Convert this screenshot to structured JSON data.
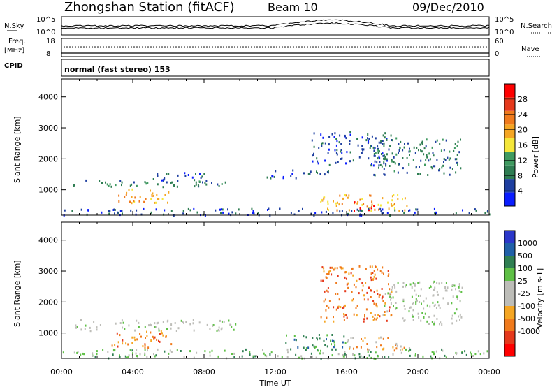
{
  "header": {
    "station": "Zhongshan Station (fitACF)",
    "beam": "Beam 10",
    "date": "09/Dec/2010"
  },
  "top_panels": {
    "nsky_label": "N.Sky",
    "nsearch_label": "N.Search",
    "noise_ticks": [
      "10^5",
      "10^0"
    ],
    "freq_label_top": "Freq.",
    "freq_label_unit": "[MHz]",
    "freq_ticks": [
      "18",
      "8"
    ],
    "nave_label": "Nave",
    "nave_ticks": [
      "60",
      "0"
    ],
    "cpid_label": "CPID",
    "cpid_value": "normal (fast stereo) 153"
  },
  "colors": {
    "power_scale": [
      "#0a1dff",
      "#1e3fa0",
      "#2e7d52",
      "#3f9a60",
      "#f5e73a",
      "#f5a623",
      "#f07a1c",
      "#e5391c",
      "#ff0000"
    ],
    "velocity_scale": [
      "#2b37c9",
      "#2060a8",
      "#2f7f52",
      "#5fc046",
      "#bdbdb8",
      "#bdbdb8",
      "#f5a623",
      "#f07a1c",
      "#e5391c",
      "#ff0000"
    ]
  },
  "chart_data": [
    {
      "type": "heatmap",
      "name": "power",
      "xlabel": "",
      "ylabel": "Slant Range [km]",
      "x_ticks": [
        "00:00",
        "04:00",
        "08:00",
        "12:00",
        "16:00",
        "20:00",
        "00:00"
      ],
      "y_ticks": [
        1000,
        2000,
        3000,
        4000
      ],
      "xlim": [
        0,
        24
      ],
      "ylim": [
        180,
        4580
      ],
      "colorbar": {
        "label": "Power [dB]",
        "ticks": [
          4,
          8,
          12,
          16,
          20,
          24,
          28
        ],
        "range": [
          0,
          30
        ]
      },
      "scatter_regions": [
        {
          "t0": 0.6,
          "t1": 9.2,
          "r0": 1100,
          "r1": 1350,
          "level": 2
        },
        {
          "t0": 2.8,
          "t1": 6.0,
          "r0": 600,
          "r1": 1050,
          "level": 5
        },
        {
          "t0": 5.0,
          "t1": 8.0,
          "r0": 1300,
          "r1": 1600,
          "level": 1
        },
        {
          "t0": 11.5,
          "t1": 15.0,
          "r0": 1400,
          "r1": 1700,
          "level": 1
        },
        {
          "t0": 14.0,
          "t1": 18.5,
          "r0": 1800,
          "r1": 2900,
          "level": 1
        },
        {
          "t0": 17.5,
          "t1": 22.5,
          "r0": 1500,
          "r1": 2700,
          "level": 2
        },
        {
          "t0": 14.5,
          "t1": 19.5,
          "r0": 350,
          "r1": 900,
          "level": 5
        },
        {
          "t0": 16.2,
          "t1": 17.6,
          "r0": 350,
          "r1": 650,
          "level": 7
        },
        {
          "t0": 0.0,
          "t1": 24.0,
          "r0": 200,
          "r1": 420,
          "level": 1
        }
      ]
    },
    {
      "type": "heatmap",
      "name": "velocity",
      "xlabel": "Time UT",
      "ylabel": "Slant Range [km]",
      "x_ticks": [
        "00:00",
        "04:00",
        "08:00",
        "12:00",
        "16:00",
        "20:00",
        "00:00"
      ],
      "y_ticks": [
        1000,
        2000,
        3000,
        4000
      ],
      "xlim": [
        0,
        24
      ],
      "ylim": [
        180,
        4580
      ],
      "colorbar": {
        "label": "Velocity [m s-1]",
        "ticks": [
          "1000",
          "500",
          "100",
          "25",
          "-25",
          "-100",
          "-500",
          "-1000"
        ]
      },
      "scatter_regions": [
        {
          "t0": 0.6,
          "t1": 10.0,
          "r0": 1100,
          "r1": 1450,
          "level": 4
        },
        {
          "t0": 2.8,
          "t1": 6.2,
          "r0": 550,
          "r1": 1100,
          "level": 7
        },
        {
          "t0": 14.5,
          "t1": 18.5,
          "r0": 1400,
          "r1": 3200,
          "level": 7
        },
        {
          "t0": 18.0,
          "t1": 22.5,
          "r0": 1300,
          "r1": 2700,
          "level": 4
        },
        {
          "t0": 12.5,
          "t1": 16.0,
          "r0": 450,
          "r1": 1000,
          "level": 2
        },
        {
          "t0": 16.0,
          "t1": 19.5,
          "r0": 450,
          "r1": 900,
          "level": 6
        },
        {
          "t0": 0.0,
          "t1": 24.0,
          "r0": 200,
          "r1": 500,
          "level": 3
        }
      ]
    }
  ],
  "x_axis_title": "Time UT"
}
